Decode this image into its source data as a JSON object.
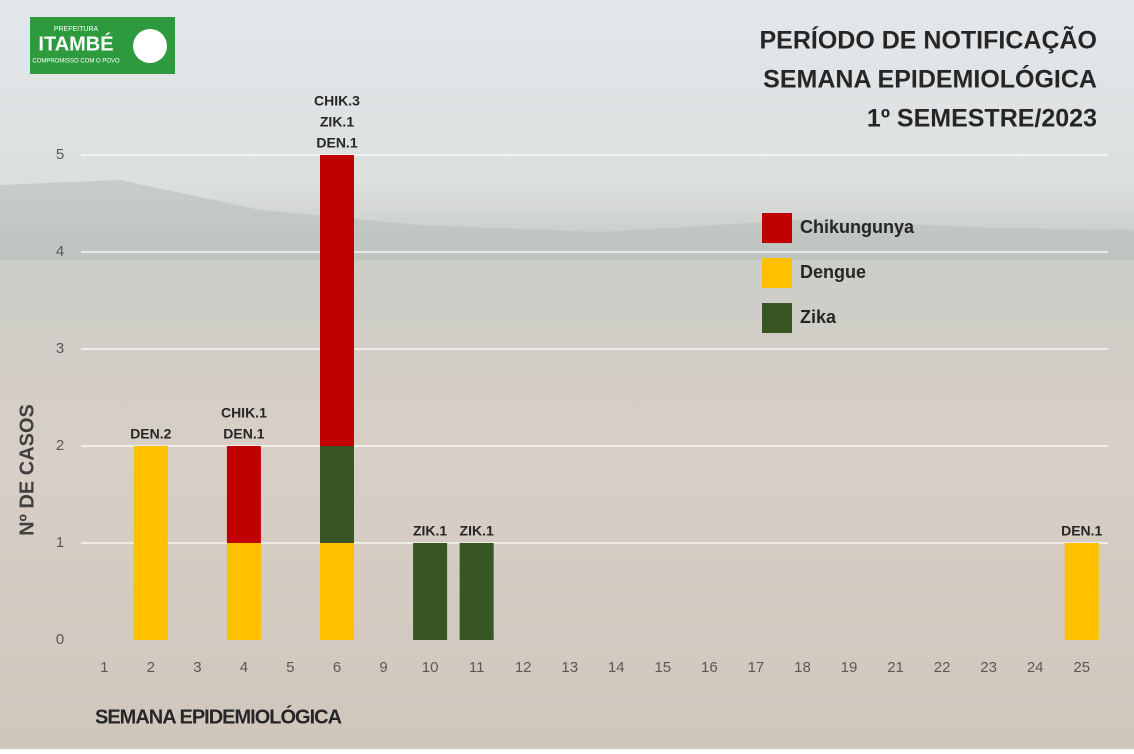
{
  "logo": {
    "top": "PREFEITURA",
    "name": "ITAMBÉ",
    "motto": "COMPROMISSO COM O POVO"
  },
  "chart_data": {
    "type": "stacked-bar",
    "title": [
      "PERÍODO DE NOTIFICAÇÃO",
      "SEMANA EPIDEMIOLÓGICA",
      "1º SEMESTRE/2023"
    ],
    "x_label": "SEMANA EPIDEMIOLÓGICA",
    "y_label": "Nº DE CASOS",
    "categories": [
      "1",
      "2",
      "3",
      "4",
      "5",
      "6",
      "9",
      "10",
      "11",
      "12",
      "13",
      "14",
      "15",
      "16",
      "17",
      "18",
      "19",
      "21",
      "22",
      "23",
      "24",
      "25"
    ],
    "series": [
      {
        "name": "Chikungunya",
        "color": "#c00000",
        "values": [
          0,
          0,
          0,
          1,
          0,
          3,
          0,
          0,
          0,
          0,
          0,
          0,
          0,
          0,
          0,
          0,
          0,
          0,
          0,
          0,
          0,
          0
        ]
      },
      {
        "name": "Dengue",
        "color": "#ffc000",
        "values": [
          0,
          2,
          0,
          1,
          0,
          1,
          0,
          0,
          0,
          0,
          0,
          0,
          0,
          0,
          0,
          0,
          0,
          0,
          0,
          0,
          0,
          1
        ]
      },
      {
        "name": "Zika",
        "color": "#375623",
        "values": [
          0,
          0,
          0,
          0,
          0,
          1,
          0,
          1,
          1,
          0,
          0,
          0,
          0,
          0,
          0,
          0,
          0,
          0,
          0,
          0,
          0,
          0
        ]
      }
    ],
    "bar_labels": [
      null,
      [
        "DEN.2"
      ],
      null,
      [
        "CHIK.1",
        "DEN.1"
      ],
      null,
      [
        "CHIK.3",
        "ZIK.1",
        "DEN.1"
      ],
      null,
      [
        "ZIK.1"
      ],
      [
        "ZIK.1"
      ],
      null,
      null,
      null,
      null,
      null,
      null,
      null,
      null,
      null,
      null,
      null,
      null,
      [
        "DEN.1"
      ]
    ],
    "ylim": [
      0,
      5
    ],
    "yticks": [
      0,
      1,
      2,
      3,
      4,
      5
    ],
    "grid": true,
    "legend": "upper-right"
  }
}
